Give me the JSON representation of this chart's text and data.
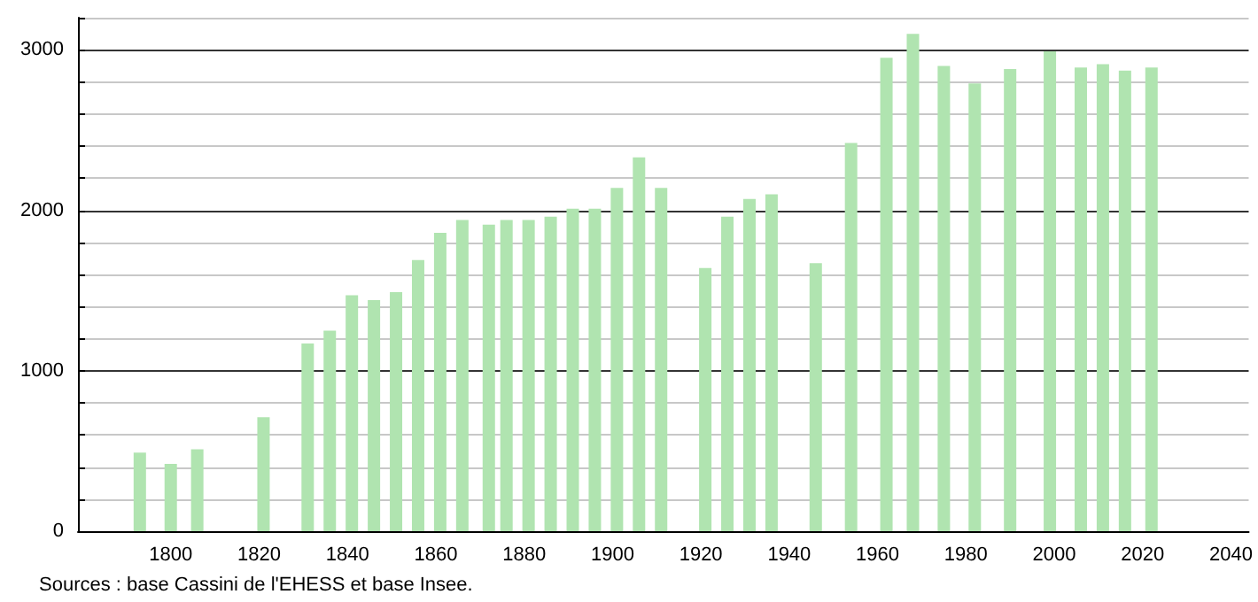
{
  "chart_data": {
    "type": "bar",
    "x": [
      1793,
      1800,
      1806,
      1821,
      1831,
      1836,
      1841,
      1846,
      1851,
      1856,
      1861,
      1866,
      1872,
      1876,
      1881,
      1886,
      1891,
      1896,
      1901,
      1906,
      1911,
      1921,
      1926,
      1931,
      1936,
      1946,
      1954,
      1962,
      1968,
      1975,
      1982,
      1990,
      1999,
      2006,
      2011,
      2016,
      2022
    ],
    "values": [
      490,
      420,
      510,
      710,
      1170,
      1250,
      1470,
      1440,
      1490,
      1690,
      1860,
      1940,
      1910,
      1940,
      1940,
      1960,
      2010,
      2010,
      2140,
      2330,
      2140,
      1640,
      1960,
      2070,
      2100,
      1670,
      2420,
      2950,
      3100,
      2900,
      2790,
      2880,
      2990,
      2890,
      2910,
      2870,
      2890
    ],
    "color": "#b0e4b0",
    "xlim": [
      1779,
      2044
    ],
    "xticks": [
      1800,
      1820,
      1840,
      1860,
      1880,
      1900,
      1920,
      1940,
      1960,
      1980,
      2000,
      2020,
      2040
    ],
    "ylim": [
      0,
      3200
    ],
    "yticks": [
      0,
      {
        "value": 200,
        "label": null
      },
      {
        "value": 400,
        "label": null
      },
      {
        "value": 600,
        "label": null
      },
      {
        "value": 800,
        "label": null
      },
      1000,
      {
        "value": 1200,
        "label": null
      },
      {
        "value": 1400,
        "label": null
      },
      {
        "value": 1600,
        "label": null
      },
      {
        "value": 1800,
        "label": null
      },
      2000,
      {
        "value": 2200,
        "label": null
      },
      {
        "value": 2400,
        "label": null
      },
      {
        "value": 2600,
        "label": null
      },
      {
        "value": 2800,
        "label": null
      },
      3000,
      {
        "value": 3200,
        "label": null
      }
    ],
    "grid": "y",
    "annotations": [
      "Sources : base Cassini de l'EHESS et base Insee."
    ]
  }
}
